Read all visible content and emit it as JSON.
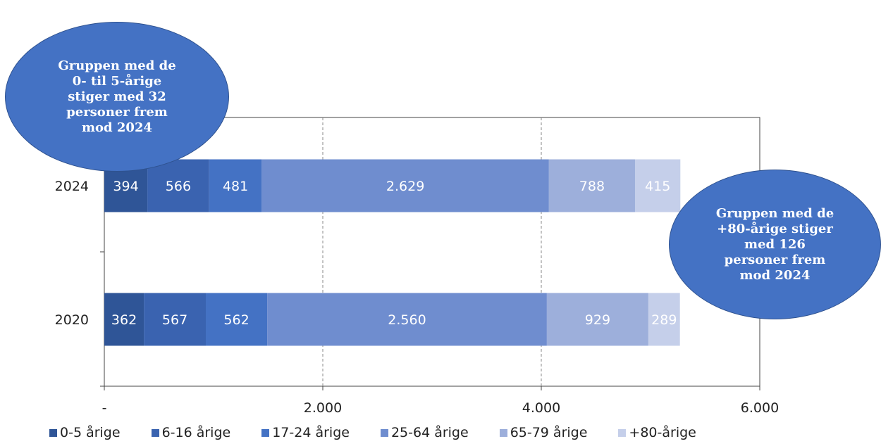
{
  "chart_data": {
    "type": "bar",
    "orientation": "horizontal",
    "stacked": true,
    "categories": [
      "2024",
      "2020"
    ],
    "series": [
      {
        "name": "0-5 årige",
        "color": "#2f5597",
        "values": [
          394,
          362
        ],
        "labels": [
          "394",
          "362"
        ]
      },
      {
        "name": "6-16 årige",
        "color": "#3a63b0",
        "values": [
          566,
          567
        ],
        "labels": [
          "566",
          "567"
        ]
      },
      {
        "name": "17-24 årige",
        "color": "#4472c4",
        "values": [
          481,
          562
        ],
        "labels": [
          "481",
          "562"
        ]
      },
      {
        "name": "25-64 årige",
        "color": "#6f8dcf",
        "values": [
          2629,
          2560
        ],
        "labels": [
          "2.629",
          "2.560"
        ]
      },
      {
        "name": "65-79 årige",
        "color": "#9dafdb",
        "values": [
          788,
          929
        ],
        "labels": [
          "788",
          "929"
        ]
      },
      {
        "name": "+80-årige",
        "color": "#c5cfea",
        "values": [
          415,
          289
        ],
        "labels": [
          "415",
          "289"
        ]
      }
    ],
    "xlim": [
      0,
      6000
    ],
    "xticks": [
      0,
      2000,
      4000,
      6000
    ],
    "xtick_labels": [
      "-",
      "2.000",
      "4.000",
      "6.000"
    ],
    "grid": "vertical-dashed",
    "legend_position": "bottom"
  },
  "callouts": [
    {
      "text": "Gruppen med de 0- til 5-årige stiger med 32 personer frem mod 2024"
    },
    {
      "text": "Gruppen med de +80-årige stiger med 126 personer frem mod 2024"
    }
  ]
}
